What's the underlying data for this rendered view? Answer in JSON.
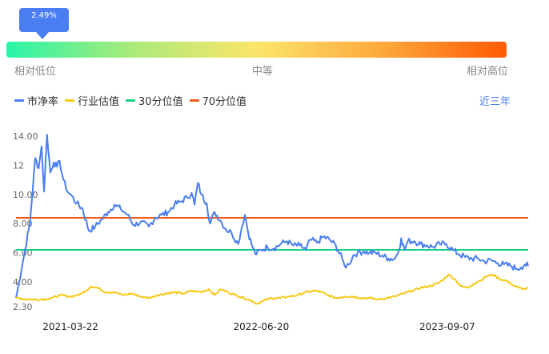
{
  "gauge": {
    "current_percentile": "2.49%",
    "level": 0.0249,
    "low_label": "相对低位",
    "mid_label": "中等",
    "high_label": "相对高位"
  },
  "legend": {
    "items": [
      {
        "label": "市净率",
        "color": "#4a7ef2"
      },
      {
        "label": "行业估值",
        "color": "#f6c915"
      },
      {
        "label": "30分位值",
        "color": "#19d186"
      },
      {
        "label": "70分位值",
        "color": "#f25a1e"
      }
    ]
  },
  "range_selector": {
    "label": "近三年"
  },
  "chart_data": {
    "type": "line",
    "x_ticks": [
      "2021-03-22",
      "2022-06-20",
      "2023-09-07"
    ],
    "y_tick_labels": [
      "14.00",
      "12",
      "10.00",
      "8.00",
      "6.00",
      "4.00",
      "2.30"
    ],
    "y_ticks": [
      14,
      12,
      10,
      8,
      6,
      4,
      2.3
    ],
    "ylim": [
      2.3,
      14.0
    ],
    "x_range": [
      "2020-11-12",
      "2024-03-18"
    ],
    "series": [
      {
        "name": "市净率",
        "color": "#4a7ef2",
        "points": [
          [
            "2020-11-12",
            2.9
          ],
          [
            "2020-12-01",
            5.8
          ],
          [
            "2020-12-15",
            8.0
          ],
          [
            "2020-12-28",
            12.5
          ],
          [
            "2021-01-05",
            11.8
          ],
          [
            "2021-01-12",
            13.3
          ],
          [
            "2021-01-18",
            10.2
          ],
          [
            "2021-01-25",
            14.1
          ],
          [
            "2021-02-02",
            11.5
          ],
          [
            "2021-02-10",
            12.2
          ],
          [
            "2021-02-18",
            11.9
          ],
          [
            "2021-02-24",
            12.3
          ],
          [
            "2021-03-05",
            11.0
          ],
          [
            "2021-03-15",
            10.2
          ],
          [
            "2021-03-25",
            9.9
          ],
          [
            "2021-04-06",
            9.4
          ],
          [
            "2021-04-20",
            9.0
          ],
          [
            "2021-05-05",
            7.5
          ],
          [
            "2021-05-20",
            7.8
          ],
          [
            "2021-06-05",
            8.3
          ],
          [
            "2021-06-20",
            8.8
          ],
          [
            "2021-07-05",
            9.3
          ],
          [
            "2021-07-20",
            9.0
          ],
          [
            "2021-08-05",
            8.6
          ],
          [
            "2021-08-20",
            7.9
          ],
          [
            "2021-09-05",
            8.1
          ],
          [
            "2021-09-25",
            7.8
          ],
          [
            "2021-10-10",
            8.4
          ],
          [
            "2021-10-25",
            8.6
          ],
          [
            "2021-11-10",
            8.8
          ],
          [
            "2021-11-25",
            9.3
          ],
          [
            "2021-12-10",
            9.5
          ],
          [
            "2021-12-25",
            9.8
          ],
          [
            "2022-01-05",
            10.1
          ],
          [
            "2022-01-12",
            9.3
          ],
          [
            "2022-01-20",
            10.8
          ],
          [
            "2022-01-28",
            10.0
          ],
          [
            "2022-02-10",
            9.4
          ],
          [
            "2022-02-18",
            8.0
          ],
          [
            "2022-03-01",
            8.8
          ],
          [
            "2022-03-15",
            8.2
          ],
          [
            "2022-03-28",
            7.6
          ],
          [
            "2022-04-10",
            7.4
          ],
          [
            "2022-04-26",
            6.6
          ],
          [
            "2022-05-05",
            7.8
          ],
          [
            "2022-05-12",
            8.6
          ],
          [
            "2022-05-20",
            7.4
          ],
          [
            "2022-05-28",
            6.6
          ],
          [
            "2022-06-06",
            5.9
          ],
          [
            "2022-06-20",
            6.2
          ],
          [
            "2022-07-05",
            6.4
          ],
          [
            "2022-07-20",
            6.3
          ],
          [
            "2022-08-05",
            6.6
          ],
          [
            "2022-08-20",
            6.8
          ],
          [
            "2022-09-05",
            6.5
          ],
          [
            "2022-09-20",
            6.5
          ],
          [
            "2022-10-05",
            6.2
          ],
          [
            "2022-10-15",
            6.9
          ],
          [
            "2022-10-31",
            6.7
          ],
          [
            "2022-11-15",
            7.1
          ],
          [
            "2022-11-30",
            6.9
          ],
          [
            "2022-12-15",
            6.5
          ],
          [
            "2022-12-30",
            5.6
          ],
          [
            "2023-01-05",
            5.1
          ],
          [
            "2023-01-15",
            5.2
          ],
          [
            "2023-01-25",
            5.8
          ],
          [
            "2023-02-05",
            6.0
          ],
          [
            "2023-02-20",
            6.1
          ],
          [
            "2023-03-05",
            6.0
          ],
          [
            "2023-03-20",
            6.0
          ],
          [
            "2023-04-05",
            5.8
          ],
          [
            "2023-04-20",
            5.6
          ],
          [
            "2023-05-05",
            5.6
          ],
          [
            "2023-05-15",
            6.2
          ],
          [
            "2023-05-20",
            7.0
          ],
          [
            "2023-05-28",
            6.2
          ],
          [
            "2023-06-05",
            6.8
          ],
          [
            "2023-06-20",
            6.8
          ],
          [
            "2023-07-05",
            6.6
          ],
          [
            "2023-07-20",
            6.5
          ],
          [
            "2023-08-05",
            6.4
          ],
          [
            "2023-08-20",
            6.6
          ],
          [
            "2023-09-05",
            6.6
          ],
          [
            "2023-09-20",
            6.2
          ],
          [
            "2023-10-05",
            5.9
          ],
          [
            "2023-10-20",
            5.7
          ],
          [
            "2023-11-05",
            5.6
          ],
          [
            "2023-11-20",
            5.6
          ],
          [
            "2023-12-05",
            5.4
          ],
          [
            "2023-12-20",
            5.5
          ],
          [
            "2024-01-05",
            5.3
          ],
          [
            "2024-01-20",
            5.2
          ],
          [
            "2024-02-05",
            5.1
          ],
          [
            "2024-02-20",
            4.9
          ],
          [
            "2024-03-01",
            5.0
          ],
          [
            "2024-03-10",
            5.2
          ],
          [
            "2024-03-18",
            5.1
          ]
        ]
      },
      {
        "name": "行业估值",
        "color": "#f6c915",
        "points": [
          [
            "2020-11-12",
            2.9
          ],
          [
            "2020-12-15",
            2.8
          ],
          [
            "2021-01-15",
            2.8
          ],
          [
            "2021-02-05",
            2.9
          ],
          [
            "2021-02-25",
            3.1
          ],
          [
            "2021-03-20",
            3.0
          ],
          [
            "2021-04-10",
            3.1
          ],
          [
            "2021-04-28",
            3.4
          ],
          [
            "2021-05-10",
            3.7
          ],
          [
            "2021-05-25",
            3.6
          ],
          [
            "2021-06-15",
            3.3
          ],
          [
            "2021-07-05",
            3.3
          ],
          [
            "2021-07-25",
            3.1
          ],
          [
            "2021-08-15",
            3.2
          ],
          [
            "2021-09-05",
            3.0
          ],
          [
            "2021-09-25",
            2.9
          ],
          [
            "2021-10-15",
            3.1
          ],
          [
            "2021-11-05",
            3.2
          ],
          [
            "2021-11-25",
            3.3
          ],
          [
            "2021-12-15",
            3.2
          ],
          [
            "2022-01-05",
            3.4
          ],
          [
            "2022-01-25",
            3.3
          ],
          [
            "2022-02-15",
            3.5
          ],
          [
            "2022-03-01",
            3.1
          ],
          [
            "2022-03-15",
            3.5
          ],
          [
            "2022-04-01",
            3.3
          ],
          [
            "2022-04-20",
            3.1
          ],
          [
            "2022-05-10",
            2.9
          ],
          [
            "2022-05-30",
            2.7
          ],
          [
            "2022-06-10",
            2.5
          ],
          [
            "2022-06-25",
            2.7
          ],
          [
            "2022-07-15",
            2.9
          ],
          [
            "2022-08-05",
            2.9
          ],
          [
            "2022-08-25",
            3.0
          ],
          [
            "2022-09-15",
            3.1
          ],
          [
            "2022-10-05",
            3.3
          ],
          [
            "2022-10-25",
            3.4
          ],
          [
            "2022-11-10",
            3.3
          ],
          [
            "2022-11-25",
            3.1
          ],
          [
            "2022-12-15",
            2.9
          ],
          [
            "2023-01-05",
            3.0
          ],
          [
            "2023-01-25",
            3.0
          ],
          [
            "2023-02-15",
            2.9
          ],
          [
            "2023-03-05",
            2.9
          ],
          [
            "2023-03-25",
            2.8
          ],
          [
            "2023-04-15",
            2.9
          ],
          [
            "2023-05-05",
            3.0
          ],
          [
            "2023-05-25",
            3.2
          ],
          [
            "2023-06-15",
            3.4
          ],
          [
            "2023-07-05",
            3.6
          ],
          [
            "2023-07-25",
            3.7
          ],
          [
            "2023-08-15",
            3.9
          ],
          [
            "2023-08-30",
            4.2
          ],
          [
            "2023-09-10",
            4.5
          ],
          [
            "2023-09-25",
            4.2
          ],
          [
            "2023-10-10",
            3.7
          ],
          [
            "2023-10-25",
            3.6
          ],
          [
            "2023-11-10",
            3.9
          ],
          [
            "2023-11-25",
            4.1
          ],
          [
            "2023-12-10",
            4.4
          ],
          [
            "2023-12-25",
            4.5
          ],
          [
            "2024-01-10",
            4.2
          ],
          [
            "2024-01-25",
            4.1
          ],
          [
            "2024-02-10",
            3.8
          ],
          [
            "2024-02-25",
            3.6
          ],
          [
            "2024-03-05",
            3.5
          ],
          [
            "2024-03-18",
            3.6
          ]
        ]
      },
      {
        "name": "30分位值",
        "color": "#19d186",
        "constant": 6.2
      },
      {
        "name": "70分位值",
        "color": "#f25a1e",
        "constant": 8.4
      }
    ]
  }
}
